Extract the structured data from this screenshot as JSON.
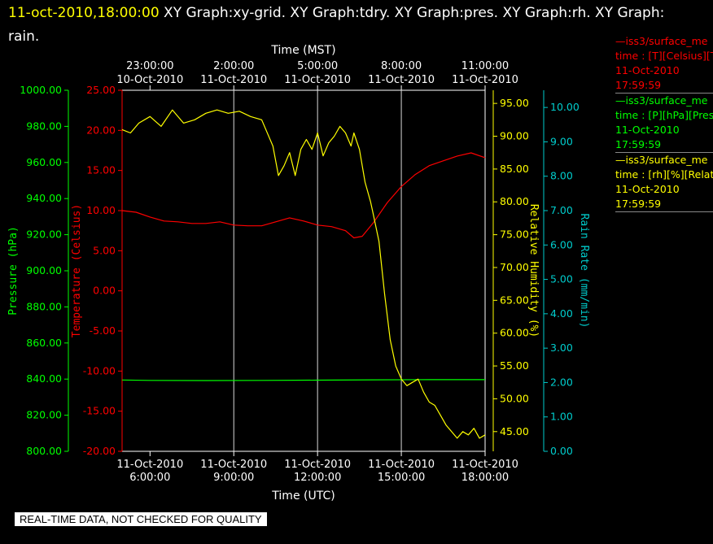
{
  "header": {
    "timestamp": "11-oct-2010,18:00:00",
    "titles": "  XY Graph:xy-grid.  XY Graph:tdry.  XY Graph:pres.  XY Graph:rh.  XY Graph:",
    "titles_wrap": "rain."
  },
  "colors": {
    "temperature": "#ff0000",
    "pressure": "#00ff00",
    "humidity": "#ffff00",
    "rain": "#00cccc",
    "grid": "#ffffff"
  },
  "legend": [
    {
      "line1": "—iss3/surface_me",
      "line2": "time : [T][Celsius][T",
      "line3": "11-Oct-2010",
      "line4": "17:59:59",
      "color": "#ff0000"
    },
    {
      "line1": "—iss3/surface_me",
      "line2": "time : [P][hPa][Pres",
      "line3": "11-Oct-2010",
      "line4": "17:59:59",
      "color": "#00ff00"
    },
    {
      "line1": "—iss3/surface_me",
      "line2": "time : [rh][%][Relati",
      "line3": "11-Oct-2010",
      "line4": "17:59:59",
      "color": "#ffff00"
    }
  ],
  "note": "REAL-TIME DATA, NOT CHECKED FOR QUALITY",
  "chart_data": {
    "type": "line",
    "top_axis_title": "Time (MST)",
    "bottom_axis_title": "Time (UTC)",
    "x_range_hours_utc": [
      "11-Oct-2010 5:00:00",
      "11-Oct-2010 18:00:00"
    ],
    "top_ticks": [
      {
        "time": "23:00:00",
        "date": "10-Oct-2010"
      },
      {
        "time": "2:00:00",
        "date": "11-Oct-2010"
      },
      {
        "time": "5:00:00",
        "date": "11-Oct-2010"
      },
      {
        "time": "8:00:00",
        "date": "11-Oct-2010"
      },
      {
        "time": "11:00:00",
        "date": "11-Oct-2010"
      }
    ],
    "bottom_ticks": [
      {
        "date": "11-Oct-2010",
        "time": "6:00:00"
      },
      {
        "date": "11-Oct-2010",
        "time": "9:00:00"
      },
      {
        "date": "11-Oct-2010",
        "time": "12:00:00"
      },
      {
        "date": "11-Oct-2010",
        "time": "15:00:00"
      },
      {
        "date": "11-Oct-2010",
        "time": "18:00:00"
      }
    ],
    "axes": {
      "pressure": {
        "label": "Pressure (hPa)",
        "ylim": [
          800,
          1000
        ],
        "ticks": [
          "800.00",
          "820.00",
          "840.00",
          "860.00",
          "880.00",
          "900.00",
          "920.00",
          "940.00",
          "960.00",
          "980.00",
          "1000.00"
        ]
      },
      "temperature": {
        "label": "Temperature (Celsius)",
        "ylim": [
          -20,
          25
        ],
        "ticks": [
          "-20.00",
          "-15.00",
          "-10.00",
          "-5.00",
          "0.00",
          "5.00",
          "10.00",
          "15.00",
          "20.00",
          "25.00"
        ]
      },
      "humidity": {
        "label": "Relative Humidity (%)",
        "ylim": [
          42,
          97
        ],
        "ticks": [
          "45.00",
          "50.00",
          "55.00",
          "60.00",
          "65.00",
          "70.00",
          "75.00",
          "80.00",
          "85.00",
          "90.00",
          "95.00"
        ]
      },
      "rain": {
        "label": "Rain Rate (mm/min)",
        "ylim": [
          0,
          10.5
        ],
        "ticks": [
          "0.00",
          "1.00",
          "2.00",
          "3.00",
          "4.00",
          "5.00",
          "6.00",
          "7.00",
          "8.00",
          "9.00",
          "10.00"
        ]
      }
    },
    "series": [
      {
        "name": "iss3 T",
        "axis": "temperature",
        "x": [
          5.0,
          5.5,
          6.0,
          6.5,
          7.0,
          7.5,
          8.0,
          8.5,
          9.0,
          9.5,
          10.0,
          10.5,
          11.0,
          11.5,
          12.0,
          12.5,
          13.0,
          13.3,
          13.6,
          14.0,
          14.5,
          15.0,
          15.5,
          16.0,
          16.5,
          17.0,
          17.5,
          18.0
        ],
        "y": [
          10.0,
          9.8,
          9.2,
          8.7,
          8.6,
          8.4,
          8.4,
          8.6,
          8.2,
          8.1,
          8.1,
          8.6,
          9.1,
          8.7,
          8.2,
          8.0,
          7.5,
          6.6,
          6.8,
          8.5,
          11.0,
          13.0,
          14.5,
          15.6,
          16.2,
          16.8,
          17.2,
          16.6
        ]
      },
      {
        "name": "iss3 P",
        "axis": "pressure",
        "x": [
          5.0,
          6.0,
          8.0,
          10.0,
          12.0,
          14.0,
          16.0,
          18.0
        ],
        "y": [
          839.5,
          839.3,
          839.2,
          839.3,
          839.4,
          839.6,
          839.7,
          839.7
        ]
      },
      {
        "name": "iss3 rh",
        "axis": "humidity",
        "x": [
          5.0,
          5.3,
          5.6,
          6.0,
          6.4,
          6.8,
          7.2,
          7.6,
          8.0,
          8.4,
          8.8,
          9.2,
          9.6,
          10.0,
          10.4,
          10.6,
          10.8,
          11.0,
          11.2,
          11.4,
          11.6,
          11.8,
          12.0,
          12.2,
          12.4,
          12.6,
          12.8,
          13.0,
          13.2,
          13.3,
          13.5,
          13.7,
          13.9,
          14.0,
          14.2,
          14.4,
          14.6,
          14.8,
          15.0,
          15.2,
          15.4,
          15.6,
          15.8,
          16.0,
          16.2,
          16.4,
          16.6,
          16.8,
          17.0,
          17.2,
          17.4,
          17.6,
          17.8,
          18.0
        ],
        "y": [
          91.0,
          90.5,
          92.0,
          93.0,
          91.5,
          94.0,
          92.0,
          92.5,
          93.5,
          94.0,
          93.5,
          93.8,
          93.0,
          92.5,
          88.5,
          84.0,
          85.5,
          87.5,
          84.0,
          88.0,
          89.5,
          88.0,
          90.5,
          87.0,
          89.0,
          90.0,
          91.5,
          90.5,
          88.5,
          90.5,
          88.0,
          83.0,
          80.0,
          78.0,
          74.0,
          66.0,
          59.0,
          55.0,
          53.0,
          52.0,
          52.5,
          53.0,
          51.0,
          49.5,
          49.0,
          47.5,
          46.0,
          45.0,
          44.0,
          45.0,
          44.5,
          45.5,
          44.0,
          44.5
        ]
      },
      {
        "name": "iss3 rain",
        "axis": "rain",
        "x": [],
        "y": []
      }
    ]
  }
}
